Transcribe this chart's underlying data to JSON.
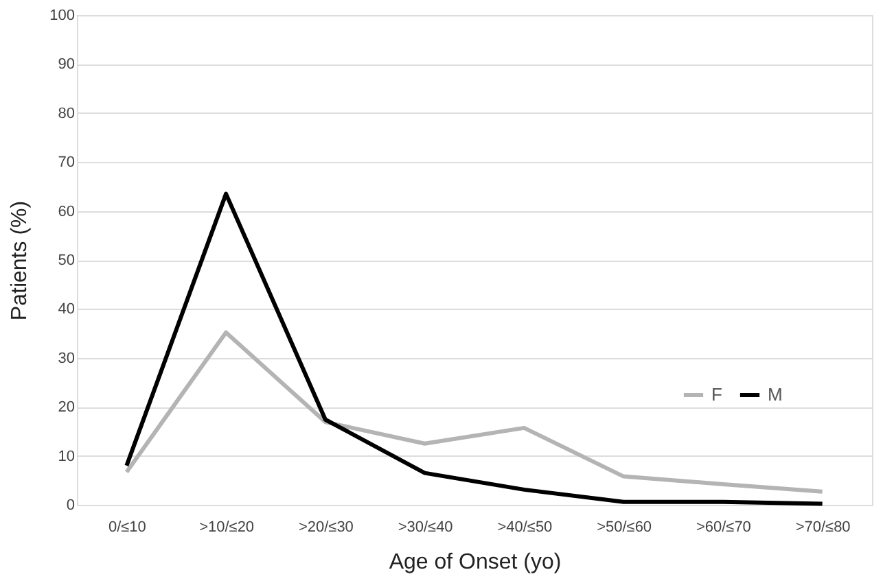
{
  "chart_data": {
    "type": "line",
    "xlabel": "Age of Onset (yo)",
    "ylabel": "Patients (%)",
    "categories": [
      "0/≤10",
      ">10/≤20",
      ">20/≤30",
      ">30/≤40",
      ">40/≤50",
      ">50/≤60",
      ">60/≤70",
      ">70/≤80"
    ],
    "series": [
      {
        "name": "F",
        "color": "#b4b4b4",
        "values": [
          6.7,
          35.2,
          16.9,
          12.5,
          15.7,
          5.8,
          4.2,
          2.7
        ]
      },
      {
        "name": "M",
        "color": "#000000",
        "values": [
          8,
          63.5,
          17.4,
          6.5,
          3.1,
          0.6,
          0.6,
          0.2
        ]
      }
    ],
    "ylim": [
      0,
      100
    ],
    "yticks": [
      0,
      10,
      20,
      30,
      40,
      50,
      60,
      70,
      80,
      90,
      100
    ],
    "grid": "y",
    "legend": "right",
    "marker": "none",
    "line_style": "solid"
  }
}
